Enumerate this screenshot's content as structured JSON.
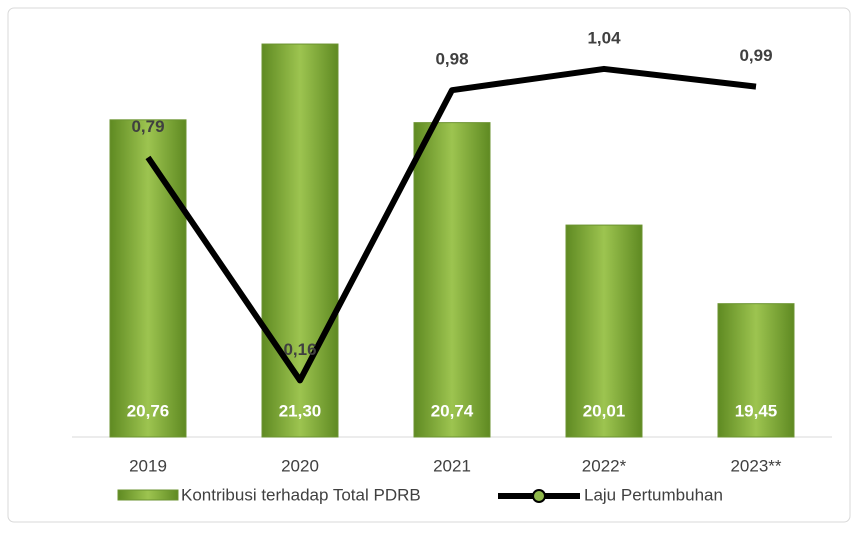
{
  "chart_data": {
    "type": "bar-line",
    "categories": [
      "2019",
      "2020",
      "2021",
      "2022*",
      "2023**"
    ],
    "series": [
      {
        "name": "Kontribusi terhadap Total PDRB",
        "type": "bar",
        "color": "#7ba23a",
        "values": [
          20.76,
          21.3,
          20.74,
          20.01,
          19.45
        ],
        "value_labels": [
          "20,76",
          "21,30",
          "20,74",
          "20,01",
          "19,45"
        ]
      },
      {
        "name": "Laju Pertumbuhan",
        "type": "line",
        "axis": "y2",
        "color": "#000000",
        "values": [
          0.79,
          0.16,
          0.98,
          1.04,
          0.99
        ],
        "value_labels": [
          "0,79",
          "0,16",
          "0,98",
          "1,04",
          "0,99"
        ]
      }
    ],
    "ylim": [
      18.5,
      21.4
    ],
    "y2lim": [
      0,
      1.15
    ],
    "legend": "bottom"
  }
}
